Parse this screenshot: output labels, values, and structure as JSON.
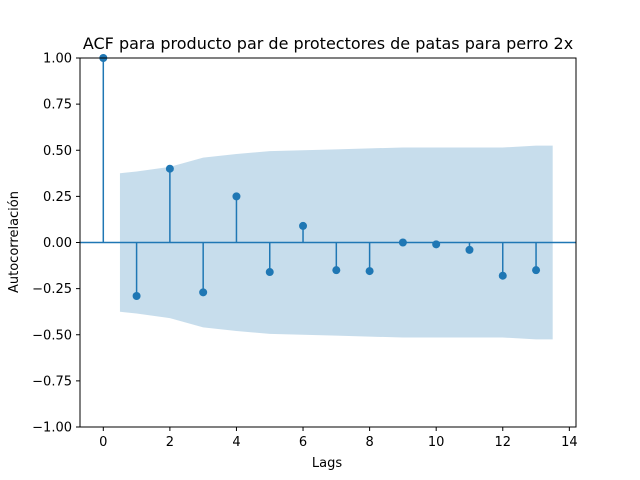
{
  "chart_data": {
    "type": "scatter",
    "title": "ACF para producto par de protectores de patas para perro 2x",
    "xlabel": "Lags",
    "ylabel": "Autocorrelación",
    "xlim": [
      -0.7,
      14.2
    ],
    "ylim": [
      -1.0,
      1.0
    ],
    "xticks": [
      0,
      2,
      4,
      6,
      8,
      10,
      12,
      14
    ],
    "xtick_labels": [
      "0",
      "2",
      "4",
      "6",
      "8",
      "10",
      "12",
      "14"
    ],
    "yticks": [
      1.0,
      0.75,
      0.5,
      0.25,
      0.0,
      -0.25,
      -0.5,
      -0.75,
      -1.0
    ],
    "ytick_labels": [
      "1.00",
      "0.75",
      "0.50",
      "0.25",
      "0.00",
      "−0.25",
      "−0.50",
      "−0.75",
      "−1.00"
    ],
    "grid": false,
    "colors": {
      "series": "#1f77b4",
      "confidence_band": "#1f77b4"
    },
    "series": [
      {
        "lags": [
          0,
          1,
          2,
          3,
          4,
          5,
          6,
          7,
          8,
          9,
          10,
          11,
          12,
          13
        ],
        "values": [
          1.0,
          -0.29,
          0.4,
          -0.27,
          0.25,
          -0.16,
          0.09,
          -0.15,
          -0.155,
          0.0,
          -0.01,
          -0.04,
          -0.18,
          -0.15
        ]
      }
    ],
    "confidence_band": {
      "x": [
        0.5,
        1,
        2,
        3,
        4,
        5,
        6,
        7,
        8,
        9,
        10,
        11,
        12,
        13,
        13.5
      ],
      "upper": [
        0.375,
        0.385,
        0.41,
        0.46,
        0.48,
        0.495,
        0.5,
        0.505,
        0.51,
        0.515,
        0.515,
        0.515,
        0.515,
        0.525,
        0.525
      ]
    }
  }
}
